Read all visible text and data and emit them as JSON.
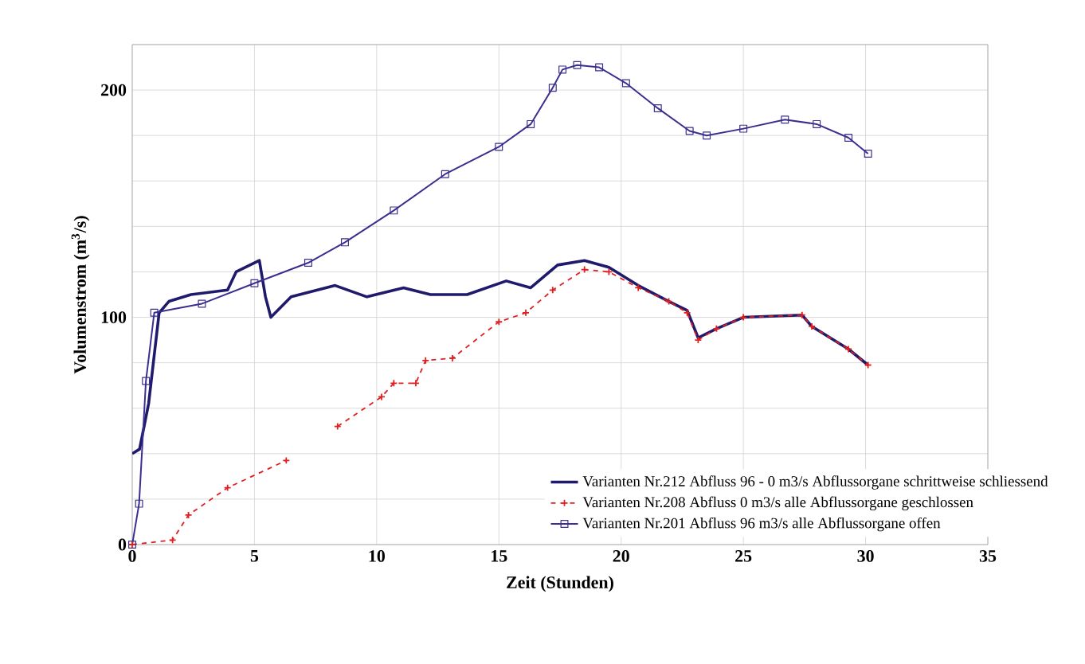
{
  "chart_data": {
    "type": "line",
    "xlabel": "Zeit (Stunden)",
    "ylabel": "Volumenstrom (m$^{3}$/s)",
    "xlim": [
      0,
      35
    ],
    "ylim": [
      0,
      220
    ],
    "xticks": [
      0,
      5,
      10,
      15,
      20,
      25,
      30,
      35
    ],
    "yticks": [
      0,
      {
        "value": 20,
        "label": null
      },
      {
        "value": 40,
        "label": null
      },
      {
        "value": 60,
        "label": null
      },
      {
        "value": 80,
        "label": null
      },
      100,
      {
        "value": 120,
        "label": null
      },
      {
        "value": 140,
        "label": null
      },
      {
        "value": 160,
        "label": null
      },
      {
        "value": 180,
        "label": null
      },
      200,
      {
        "value": 220,
        "label": null
      }
    ],
    "grid": true,
    "legend": "bottom right",
    "series": [
      {
        "name": "Varianten Nr.212 Abfluss  96 - 0 m3/s  Abflussorgane schrittweise schliessend",
        "color": "#1f1a6b",
        "marker": "none",
        "line_style": "solid",
        "x": [
          0,
          0.3,
          0.67,
          1.1,
          1.5,
          2.4,
          3.9,
          4.25,
          5.2,
          5.45,
          5.67,
          6.5,
          8.3,
          9.6,
          11.1,
          12.2,
          13.7,
          15.3,
          16.3,
          17.4,
          18.5,
          19.5,
          20.7,
          21.95,
          22.7,
          23.15,
          23.9,
          25,
          27.4,
          27.8,
          29.3,
          30.1
        ],
        "values": [
          40,
          42,
          62,
          102,
          107,
          110,
          112,
          120,
          125,
          109,
          100,
          109,
          114,
          109,
          113,
          110,
          110,
          116,
          113,
          123,
          125,
          122,
          114,
          107,
          103,
          91,
          95,
          100,
          101,
          96,
          86,
          79
        ]
      },
      {
        "name": "Varianten Nr.208 Abfluss  0 m3/s  alle Abflussorgane geschlossen",
        "color": "#e02020",
        "marker": "cross",
        "line_style": "dashed",
        "x": [
          0,
          1.65,
          2.3,
          3.9,
          6.3,
          7.4,
          8.4,
          10.2,
          10.7,
          11.6,
          12,
          13.1,
          15,
          16.1,
          17.2,
          18.5,
          19.5,
          20.7,
          21.95,
          22.7,
          23.15,
          23.9,
          25,
          27.4,
          27.8,
          29.3,
          30.1
        ],
        "values": [
          0,
          2,
          13,
          25,
          37,
          null,
          52,
          65,
          71,
          71,
          81,
          82,
          98,
          102,
          112,
          121,
          120,
          113,
          107,
          102,
          90,
          95,
          100,
          101,
          96,
          86,
          79
        ]
      },
      {
        "name": "Varianten Nr.201 Abfluss  96 m3/s  alle Abflussorgane offen",
        "color": "#3a2f8f",
        "marker": "square",
        "line_style": "solid",
        "x": [
          0,
          0.28,
          0.56,
          0.9,
          2.85,
          5,
          7.2,
          8.7,
          10.7,
          12.8,
          15,
          16.3,
          17.2,
          17.6,
          18.2,
          19.1,
          20.2,
          21.5,
          22.8,
          23.5,
          25,
          26.7,
          28,
          29.3,
          30.1
        ],
        "values": [
          0,
          18,
          72,
          102,
          106,
          115,
          124,
          133,
          147,
          163,
          175,
          185,
          201,
          209,
          211,
          210,
          203,
          192,
          182,
          180,
          183,
          187,
          185,
          179,
          172
        ]
      }
    ]
  }
}
